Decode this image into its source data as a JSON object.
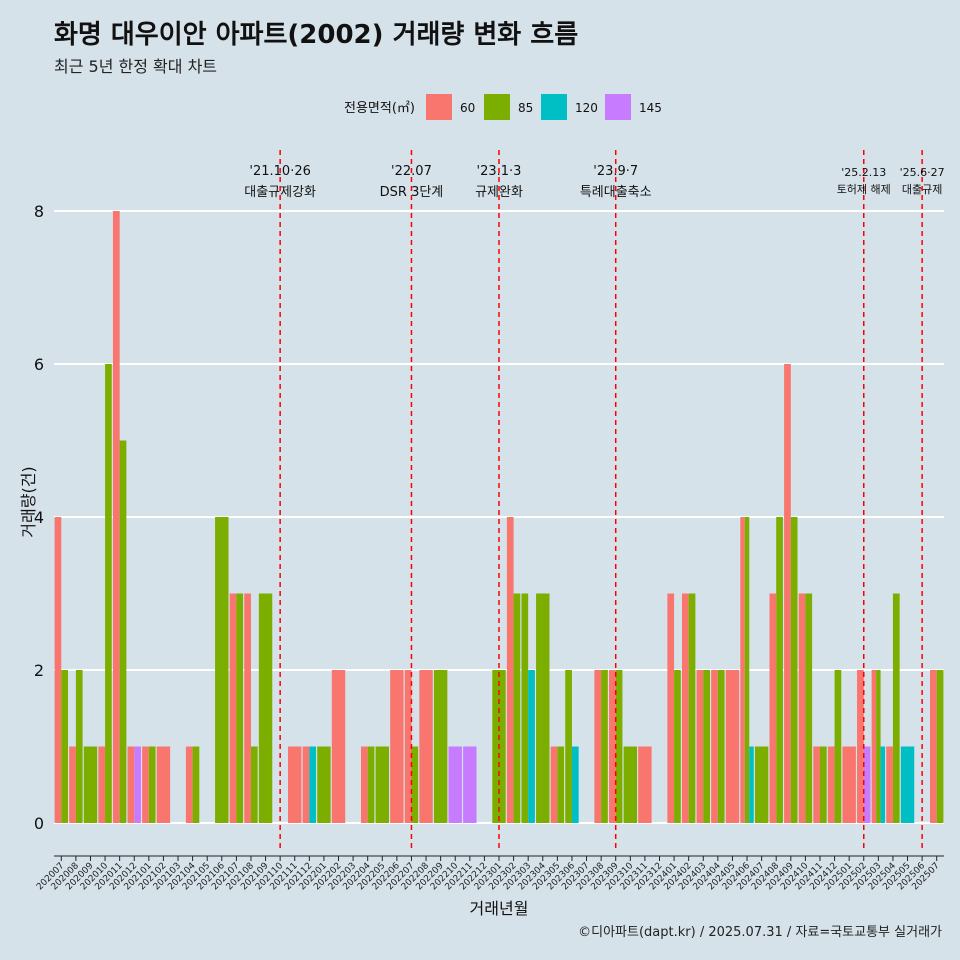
{
  "title": "화명 대우이안 아파트(2002) 거래량 변화 흐름",
  "subtitle": "최근 5년 한정 확대 차트",
  "caption": "©디아파트(dapt.kr) / 2025.07.31 / 자료=국토교통부 실거래가",
  "colors": {
    "background": "#d6e2ea",
    "s60": "#f8766d",
    "s85": "#7cae00",
    "s120": "#00bfc4",
    "s145": "#c77cff",
    "vline": "#ff0000"
  },
  "chart_data": {
    "type": "bar",
    "xlabel": "거래년월",
    "ylabel": "거래량(건)",
    "ylim": [
      0,
      8
    ],
    "yticks": [
      0,
      2,
      4,
      6,
      8
    ],
    "grid": true,
    "legend": {
      "title": "전용면적(㎡)",
      "position": "top"
    },
    "categories": [
      "202007",
      "202008",
      "202009",
      "202010",
      "202011",
      "202012",
      "202101",
      "202102",
      "202103",
      "202104",
      "202105",
      "202106",
      "202107",
      "202108",
      "202109",
      "202110",
      "202111",
      "202112",
      "202201",
      "202202",
      "202203",
      "202204",
      "202205",
      "202206",
      "202207",
      "202208",
      "202209",
      "202210",
      "202211",
      "202212",
      "202301",
      "202302",
      "202303",
      "202304",
      "202305",
      "202306",
      "202307",
      "202308",
      "202309",
      "202310",
      "202311",
      "202312",
      "202401",
      "202402",
      "202403",
      "202404",
      "202405",
      "202406",
      "202407",
      "202408",
      "202409",
      "202410",
      "202411",
      "202412",
      "202501",
      "202502",
      "202503",
      "202504",
      "202505",
      "202506",
      "202507"
    ],
    "series": [
      {
        "name": "60",
        "values": [
          4,
          1,
          0,
          1,
          8,
          1,
          1,
          1,
          0,
          1,
          0,
          0,
          3,
          3,
          0,
          0,
          1,
          1,
          0,
          2,
          0,
          1,
          0,
          2,
          2,
          2,
          0,
          0,
          0,
          0,
          0,
          4,
          0,
          0,
          1,
          0,
          0,
          2,
          2,
          0,
          1,
          0,
          3,
          3,
          2,
          2,
          2,
          4,
          0,
          3,
          6,
          3,
          1,
          1,
          1,
          2,
          2,
          1,
          0,
          0,
          2
        ]
      },
      {
        "name": "85",
        "values": [
          2,
          2,
          1,
          6,
          5,
          0,
          1,
          0,
          0,
          1,
          0,
          4,
          3,
          1,
          3,
          0,
          0,
          0,
          1,
          0,
          0,
          1,
          1,
          0,
          1,
          0,
          2,
          0,
          0,
          0,
          2,
          3,
          3,
          3,
          1,
          2,
          0,
          2,
          2,
          1,
          0,
          0,
          2,
          3,
          2,
          2,
          0,
          4,
          1,
          4,
          4,
          3,
          1,
          2,
          0,
          0,
          2,
          3,
          0,
          0,
          2
        ]
      },
      {
        "name": "120",
        "values": [
          0,
          0,
          0,
          0,
          0,
          0,
          0,
          0,
          0,
          0,
          0,
          0,
          0,
          0,
          0,
          0,
          0,
          1,
          0,
          0,
          0,
          0,
          0,
          0,
          0,
          0,
          0,
          0,
          0,
          0,
          0,
          0,
          2,
          0,
          0,
          1,
          0,
          0,
          0,
          0,
          0,
          0,
          0,
          0,
          0,
          0,
          0,
          1,
          0,
          0,
          0,
          0,
          0,
          0,
          0,
          0,
          1,
          0,
          1,
          0,
          0
        ]
      },
      {
        "name": "145",
        "values": [
          0,
          0,
          0,
          0,
          0,
          1,
          0,
          0,
          0,
          0,
          0,
          0,
          0,
          0,
          0,
          0,
          0,
          0,
          0,
          0,
          0,
          0,
          0,
          0,
          0,
          0,
          0,
          1,
          1,
          0,
          0,
          0,
          0,
          0,
          0,
          0,
          0,
          0,
          0,
          0,
          0,
          0,
          0,
          0,
          0,
          0,
          0,
          0,
          0,
          0,
          0,
          0,
          0,
          0,
          0,
          1,
          0,
          0,
          0,
          0,
          0
        ]
      }
    ],
    "annotations": [
      {
        "x": "202110",
        "date": "'21.10·26",
        "label": "대출규제강화"
      },
      {
        "x": "202207",
        "date": "'22.07",
        "label": "DSR 3단계"
      },
      {
        "x": "202301",
        "date": "'23.1·3",
        "label": "규제완화"
      },
      {
        "x": "202309",
        "date": "'23.9·7",
        "label": "특례대출축소"
      },
      {
        "x": "202502",
        "date": "'25.2.13",
        "label": "토허제 해제"
      },
      {
        "x": "202506",
        "date": "'25.6·27",
        "label": "대출규제"
      }
    ]
  }
}
